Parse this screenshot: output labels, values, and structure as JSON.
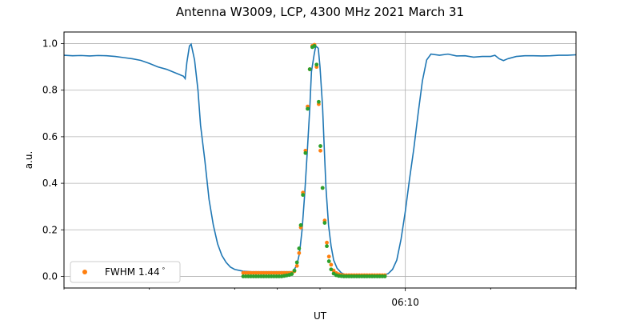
{
  "chart_data": {
    "type": "line",
    "title": "Antenna W3009, LCP, 4300 MHz 2021 March 31",
    "xlabel": "UT",
    "ylabel": "a.u.",
    "ylim": [
      -0.05,
      1.05
    ],
    "xlim": [
      0,
      60
    ],
    "x_unit": "minutes since 06:00 UT",
    "yticks": [
      0.0,
      0.2,
      0.4,
      0.6,
      0.8,
      1.0
    ],
    "ytick_labels": [
      "0.0",
      "0.2",
      "0.4",
      "0.6",
      "0.8",
      "1.0"
    ],
    "xticks_minor": [
      0,
      10,
      20,
      25,
      30,
      50,
      60
    ],
    "xticks_major": [
      {
        "x": 40,
        "label": "06:10"
      }
    ],
    "grid": {
      "horizontal": true,
      "vertical_at": [
        40
      ]
    },
    "colors": {
      "line": "#1f77b4",
      "fit": "#ff7f0e",
      "samples": "#2ca02c",
      "grid": "#b0b0b0"
    },
    "legend": {
      "placement": "lower-left",
      "entries": [
        {
          "label": "FWHM 1.44$^\\circ$",
          "display": "FWHM 1.44",
          "superscript": "∘",
          "color": "#ff7f0e"
        }
      ]
    },
    "series": [
      {
        "kind": "line",
        "points": [
          [
            0,
            0.95
          ],
          [
            1,
            0.948
          ],
          [
            2,
            0.949
          ],
          [
            3,
            0.947
          ],
          [
            4,
            0.949
          ],
          [
            5,
            0.948
          ],
          [
            6,
            0.945
          ],
          [
            7,
            0.94
          ],
          [
            8,
            0.935
          ],
          [
            9,
            0.928
          ],
          [
            10,
            0.915
          ],
          [
            11,
            0.9
          ],
          [
            12,
            0.89
          ],
          [
            13,
            0.875
          ],
          [
            14,
            0.86
          ],
          [
            14.2,
            0.85
          ],
          [
            14.4,
            0.92
          ],
          [
            14.7,
            0.99
          ],
          [
            14.9,
            0.998
          ],
          [
            15.3,
            0.93
          ],
          [
            15.7,
            0.8
          ],
          [
            16,
            0.65
          ],
          [
            16.5,
            0.5
          ],
          [
            17,
            0.33
          ],
          [
            17.5,
            0.22
          ],
          [
            18,
            0.14
          ],
          [
            18.5,
            0.09
          ],
          [
            19,
            0.06
          ],
          [
            19.5,
            0.04
          ],
          [
            20,
            0.03
          ],
          [
            21,
            0.022
          ],
          [
            22,
            0.02
          ],
          [
            24,
            0.02
          ],
          [
            26,
            0.02
          ],
          [
            26.8,
            0.02
          ],
          [
            27,
            0.03
          ],
          [
            27.3,
            0.05
          ],
          [
            27.6,
            0.1
          ],
          [
            27.9,
            0.2
          ],
          [
            28.2,
            0.35
          ],
          [
            28.5,
            0.53
          ],
          [
            28.8,
            0.72
          ],
          [
            29,
            0.88
          ],
          [
            29.3,
            0.95
          ],
          [
            29.5,
            0.99
          ],
          [
            29.8,
            0.98
          ],
          [
            30,
            0.9
          ],
          [
            30.3,
            0.73
          ],
          [
            30.5,
            0.55
          ],
          [
            30.7,
            0.38
          ],
          [
            31,
            0.22
          ],
          [
            31.3,
            0.13
          ],
          [
            31.6,
            0.07
          ],
          [
            32,
            0.035
          ],
          [
            32.5,
            0.015
          ],
          [
            33,
            0.007
          ],
          [
            34,
            0.003
          ],
          [
            35,
            0.002
          ],
          [
            36,
            0.002
          ],
          [
            37,
            0.003
          ],
          [
            37.5,
            0.006
          ],
          [
            38,
            0.012
          ],
          [
            38.5,
            0.03
          ],
          [
            39,
            0.07
          ],
          [
            39.5,
            0.16
          ],
          [
            40,
            0.28
          ],
          [
            40.5,
            0.42
          ],
          [
            41,
            0.55
          ],
          [
            41.5,
            0.7
          ],
          [
            42,
            0.84
          ],
          [
            42.5,
            0.93
          ],
          [
            43,
            0.955
          ],
          [
            44,
            0.95
          ],
          [
            45,
            0.955
          ],
          [
            46,
            0.947
          ],
          [
            47,
            0.948
          ],
          [
            48,
            0.942
          ],
          [
            49,
            0.945
          ],
          [
            50,
            0.945
          ],
          [
            50.5,
            0.95
          ],
          [
            51,
            0.935
          ],
          [
            51.5,
            0.927
          ],
          [
            52,
            0.935
          ],
          [
            53,
            0.945
          ],
          [
            54,
            0.948
          ],
          [
            55,
            0.948
          ],
          [
            56,
            0.947
          ],
          [
            57,
            0.948
          ],
          [
            58,
            0.95
          ],
          [
            59,
            0.95
          ],
          [
            60,
            0.952
          ]
        ]
      },
      {
        "kind": "scatter",
        "name": "FWHM 1.44",
        "points": [
          [
            21.0,
            0.015
          ],
          [
            21.3,
            0.015
          ],
          [
            21.6,
            0.015
          ],
          [
            21.9,
            0.015
          ],
          [
            22.2,
            0.015
          ],
          [
            22.5,
            0.015
          ],
          [
            22.8,
            0.015
          ],
          [
            23.1,
            0.015
          ],
          [
            23.4,
            0.015
          ],
          [
            23.7,
            0.015
          ],
          [
            24.0,
            0.015
          ],
          [
            24.3,
            0.015
          ],
          [
            24.6,
            0.015
          ],
          [
            24.9,
            0.015
          ],
          [
            25.2,
            0.015
          ],
          [
            25.5,
            0.015
          ],
          [
            25.8,
            0.015
          ],
          [
            26.1,
            0.015
          ],
          [
            26.4,
            0.015
          ],
          [
            26.7,
            0.015
          ],
          [
            27.0,
            0.022
          ],
          [
            27.3,
            0.045
          ],
          [
            27.55,
            0.1
          ],
          [
            27.75,
            0.21
          ],
          [
            28.0,
            0.36
          ],
          [
            28.3,
            0.54
          ],
          [
            28.55,
            0.73
          ],
          [
            28.8,
            0.89
          ],
          [
            29.1,
            0.99
          ],
          [
            29.35,
            0.995
          ],
          [
            29.6,
            0.9
          ],
          [
            29.85,
            0.74
          ],
          [
            30.05,
            0.54
          ],
          [
            30.3,
            0.38
          ],
          [
            30.55,
            0.24
          ],
          [
            30.8,
            0.145
          ],
          [
            31.05,
            0.085
          ],
          [
            31.3,
            0.05
          ],
          [
            31.6,
            0.025
          ],
          [
            31.9,
            0.014
          ],
          [
            32.2,
            0.009
          ],
          [
            32.5,
            0.006
          ],
          [
            32.8,
            0.005
          ],
          [
            33.1,
            0.005
          ],
          [
            33.4,
            0.005
          ],
          [
            33.7,
            0.005
          ],
          [
            34.0,
            0.005
          ],
          [
            34.3,
            0.005
          ],
          [
            34.6,
            0.005
          ],
          [
            34.9,
            0.005
          ],
          [
            35.2,
            0.005
          ],
          [
            35.5,
            0.005
          ],
          [
            35.8,
            0.005
          ],
          [
            36.1,
            0.005
          ],
          [
            36.4,
            0.005
          ],
          [
            36.7,
            0.005
          ],
          [
            37.0,
            0.005
          ],
          [
            37.3,
            0.005
          ],
          [
            37.6,
            0.005
          ]
        ]
      },
      {
        "kind": "scatter",
        "points": [
          [
            21.0,
            0.0
          ],
          [
            21.3,
            0.0
          ],
          [
            21.6,
            0.0
          ],
          [
            21.9,
            0.0
          ],
          [
            22.2,
            0.0
          ],
          [
            22.5,
            0.0
          ],
          [
            22.8,
            0.0
          ],
          [
            23.1,
            0.0
          ],
          [
            23.4,
            0.0
          ],
          [
            23.7,
            0.0
          ],
          [
            24.0,
            0.0
          ],
          [
            24.3,
            0.0
          ],
          [
            24.6,
            0.0
          ],
          [
            24.9,
            0.0
          ],
          [
            25.2,
            0.0
          ],
          [
            25.5,
            0.0
          ],
          [
            25.8,
            0.002
          ],
          [
            26.1,
            0.004
          ],
          [
            26.4,
            0.006
          ],
          [
            26.7,
            0.01
          ],
          [
            27.0,
            0.025
          ],
          [
            27.3,
            0.06
          ],
          [
            27.55,
            0.12
          ],
          [
            27.75,
            0.22
          ],
          [
            28.0,
            0.35
          ],
          [
            28.3,
            0.53
          ],
          [
            28.55,
            0.72
          ],
          [
            28.8,
            0.89
          ],
          [
            29.1,
            0.985
          ],
          [
            29.35,
            0.99
          ],
          [
            29.6,
            0.91
          ],
          [
            29.85,
            0.75
          ],
          [
            30.05,
            0.56
          ],
          [
            30.3,
            0.38
          ],
          [
            30.55,
            0.23
          ],
          [
            30.8,
            0.13
          ],
          [
            31.05,
            0.065
          ],
          [
            31.3,
            0.03
          ],
          [
            31.6,
            0.012
          ],
          [
            31.9,
            0.005
          ],
          [
            32.2,
            0.002
          ],
          [
            32.5,
            0.001
          ],
          [
            32.8,
            0.0
          ],
          [
            33.1,
            0.0
          ],
          [
            33.4,
            0.0
          ],
          [
            33.7,
            0.0
          ],
          [
            34.0,
            0.0
          ],
          [
            34.3,
            0.0
          ],
          [
            34.6,
            0.0
          ],
          [
            34.9,
            0.0
          ],
          [
            35.2,
            0.0
          ],
          [
            35.5,
            0.0
          ],
          [
            35.8,
            0.0
          ],
          [
            36.1,
            0.0
          ],
          [
            36.4,
            0.0
          ],
          [
            36.7,
            0.0
          ],
          [
            37.0,
            0.0
          ],
          [
            37.3,
            0.0
          ],
          [
            37.6,
            0.0
          ]
        ]
      }
    ]
  }
}
